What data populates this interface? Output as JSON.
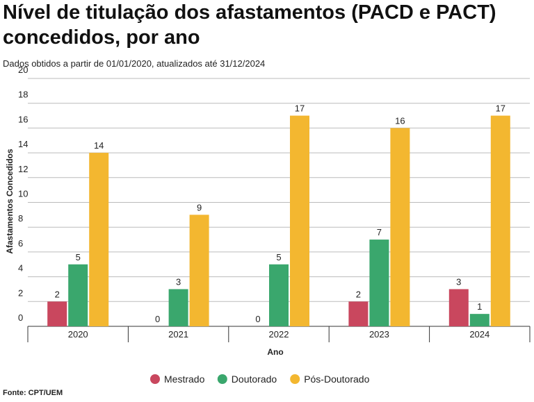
{
  "chart_data": {
    "type": "bar",
    "title": "Nível de titulação dos afastamentos (PACD e PACT) concedidos, por ano",
    "subtitle": "Dados obtidos a partir de 01/01/2020, atualizados até 31/12/2024",
    "x_label": "Ano",
    "y_label": "Afastamentos Concedidos",
    "source": "Fonte: CPT/UEM",
    "categories": [
      "2020",
      "2021",
      "2022",
      "2023",
      "2024"
    ],
    "series": [
      {
        "name": "Mestrado",
        "color": "#c9475e",
        "values": [
          2,
          0,
          0,
          2,
          3
        ]
      },
      {
        "name": "Doutorado",
        "color": "#3aa76d",
        "values": [
          5,
          3,
          5,
          7,
          1
        ]
      },
      {
        "name": "Pós-Doutorado",
        "color": "#f3b730",
        "values": [
          14,
          9,
          17,
          16,
          17
        ]
      }
    ],
    "ylim": [
      0,
      20
    ],
    "yticks": [
      0,
      2,
      4,
      6,
      8,
      10,
      12,
      14,
      16,
      18,
      20
    ],
    "grid": true
  }
}
